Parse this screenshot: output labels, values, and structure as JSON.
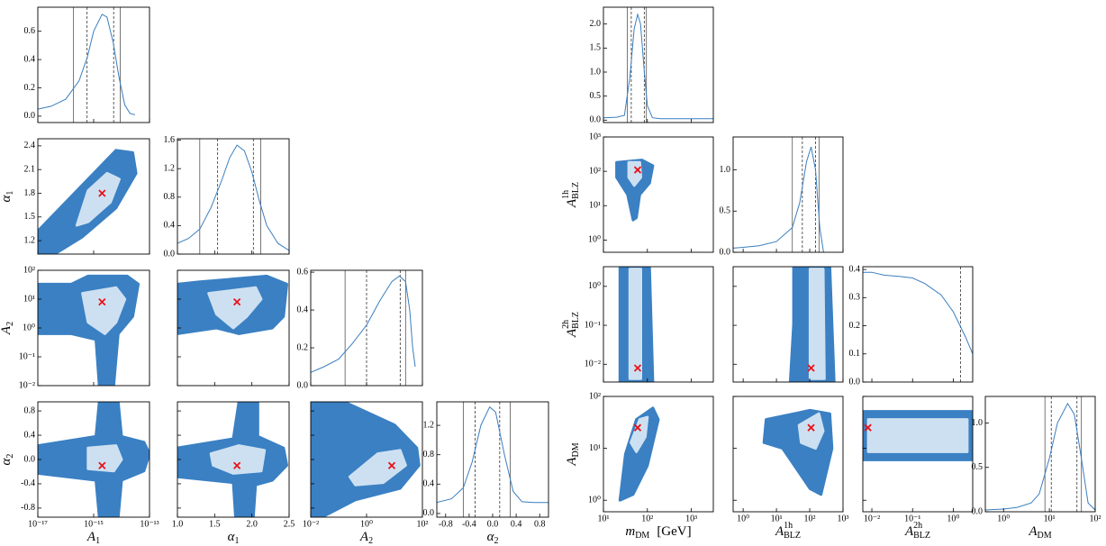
{
  "chart_data": [
    {
      "type": "corner",
      "outer_color": "#3a80c3",
      "inner_color": "#cde0f1",
      "marker_color": "#e8131b",
      "curve_color": "#3a7ebf",
      "params": [
        {
          "label": {
            "text": "A",
            "sub": "1"
          },
          "log": true,
          "xlim": [
            1e-17,
            1e-13
          ],
          "xticks": [
            {
              "value": 1e-17,
              "label": "10⁻¹⁷"
            },
            {
              "value": 1e-15,
              "label": "10⁻¹⁵"
            },
            {
              "value": 1e-13,
              "label": "10⁻¹³"
            }
          ],
          "best": 2e-15,
          "diag": {
            "x": [
              1e-17,
              3e-17,
              1e-16,
              3e-16,
              6e-16,
              1e-15,
              2e-15,
              3e-15,
              5e-15,
              8e-15,
              1.3e-14,
              2e-14,
              3e-14
            ],
            "y": [
              0.05,
              0.07,
              0.12,
              0.25,
              0.42,
              0.6,
              0.72,
              0.7,
              0.52,
              0.28,
              0.08,
              0.02,
              0.01
            ],
            "ylim": [
              -0.045,
              0.77
            ],
            "yticks": [
              {
                "value": 0,
                "label": "0.0"
              },
              0.2,
              0.4,
              0.6
            ],
            "solid": [
              1.9e-16,
              9e-15
            ],
            "dashed": [
              5.8e-16,
              5.2e-15
            ]
          }
        },
        {
          "label": {
            "text": "α",
            "sub": "1"
          },
          "log": false,
          "xlim": [
            1.0,
            2.5
          ],
          "xticks": [
            {
              "value": 1,
              "label": "1.0"
            },
            1.5,
            {
              "value": 2,
              "label": "2.0"
            },
            2.5
          ],
          "ylim": [
            1.03,
            2.49
          ],
          "yticks": [
            1.2,
            1.5,
            1.8,
            2.1,
            2.4
          ],
          "best": 1.8,
          "diag": {
            "x": [
              1.0,
              1.15,
              1.3,
              1.45,
              1.6,
              1.7,
              1.8,
              1.9,
              2.0,
              2.1,
              2.2,
              2.35,
              2.5
            ],
            "y": [
              0.15,
              0.22,
              0.35,
              0.65,
              1.05,
              1.35,
              1.53,
              1.45,
              1.15,
              0.75,
              0.4,
              0.15,
              0.05
            ],
            "ylim": [
              0,
              1.62
            ],
            "yticks": [
              {
                "value": 0,
                "label": "0.0"
              },
              0.4,
              0.8,
              1.2,
              1.6
            ],
            "solid": [
              1.3,
              2.12
            ],
            "dashed": [
              1.54,
              2.02
            ]
          }
        },
        {
          "label": {
            "text": "A",
            "sub": "2"
          },
          "log": true,
          "xlim": [
            0.01,
            100
          ],
          "xticks": [
            {
              "value": 0.01,
              "label": "10⁻²"
            },
            {
              "value": 1,
              "label": "10⁰"
            },
            {
              "value": 100,
              "label": "10²"
            }
          ],
          "ylim": [
            0.01,
            100
          ],
          "yticks": [
            {
              "value": 0.01,
              "label": "10⁻²"
            },
            {
              "value": 0.1,
              "label": "10⁻¹"
            },
            {
              "value": 1,
              "label": "10⁰"
            },
            {
              "value": 10,
              "label": "10¹"
            },
            {
              "value": 100,
              "label": "10²"
            }
          ],
          "best": 8,
          "diag": {
            "x": [
              0.01,
              0.03,
              0.1,
              0.3,
              1,
              3,
              8,
              15,
              25,
              35,
              45,
              55
            ],
            "y": [
              0.07,
              0.1,
              0.14,
              0.22,
              0.32,
              0.45,
              0.55,
              0.58,
              0.55,
              0.4,
              0.2,
              0.1
            ],
            "ylim": [
              0,
              0.61
            ],
            "yticks": [
              {
                "value": 0,
                "label": "0.0"
              },
              0.2,
              0.4,
              0.6
            ],
            "solid": [
              0.17,
              25
            ],
            "dashed": [
              1,
              16
            ]
          }
        },
        {
          "label": {
            "text": "α",
            "sub": "2"
          },
          "log": false,
          "xlim": [
            -0.95,
            0.95
          ],
          "xticks": [
            -0.8,
            -0.4,
            {
              "value": 0,
              "label": "0.0"
            },
            0.4,
            0.8
          ],
          "ylim": [
            -0.95,
            0.95
          ],
          "yticks": [
            -0.8,
            -0.4,
            {
              "value": 0,
              "label": "0.0"
            },
            0.4,
            0.8
          ],
          "best": -0.1,
          "diag": {
            "x": [
              -0.95,
              -0.7,
              -0.5,
              -0.35,
              -0.2,
              -0.05,
              0.05,
              0.2,
              0.35,
              0.5,
              0.7,
              0.95
            ],
            "y": [
              0.15,
              0.2,
              0.35,
              0.7,
              1.2,
              1.45,
              1.38,
              0.8,
              0.3,
              0.16,
              0.15,
              0.15
            ],
            "ylim": [
              -0.05,
              1.52
            ],
            "yticks": [
              {
                "value": 0,
                "label": "0.0"
              },
              0.4,
              0.8,
              1.2
            ],
            "solid": [
              -0.5,
              0.3
            ],
            "dashed": [
              -0.3,
              0.12
            ]
          }
        }
      ]
    },
    {
      "type": "corner",
      "outer_color": "#3a80c3",
      "inner_color": "#cde0f1",
      "marker_color": "#e8131b",
      "curve_color": "#3a7ebf",
      "params": [
        {
          "label": {
            "text": "m",
            "sub": "DM",
            "suffix": "[GeV]"
          },
          "log": true,
          "xlim": [
            10,
            3162
          ],
          "xticks": [
            {
              "value": 10,
              "label": "10¹"
            },
            {
              "value": 100,
              "label": "10²"
            },
            {
              "value": 1000,
              "label": "10³"
            }
          ],
          "best": 60,
          "diag": {
            "x": [
              10,
              20,
              30,
              40,
              50,
              60,
              70,
              85,
              100,
              130,
              200,
              500,
              3162
            ],
            "y": [
              0.05,
              0.06,
              0.1,
              0.9,
              1.9,
              2.2,
              2.0,
              1.0,
              0.3,
              0.05,
              0.03,
              0.03,
              0.03
            ],
            "ylim": [
              -0.05,
              2.35
            ],
            "yticks": [
              {
                "value": 0,
                "label": "0.0"
              },
              0.5,
              {
                "value": 1,
                "label": "1.0"
              },
              1.5,
              {
                "value": 2,
                "label": "2.0"
              }
            ],
            "solid": [
              35,
              95
            ],
            "dashed": [
              43,
              85
            ]
          }
        },
        {
          "label": {
            "text": "A",
            "sub": "BLZ",
            "sup": "1h"
          },
          "log": true,
          "xlim": [
            0.5,
            1000
          ],
          "xticks": [
            {
              "value": 1,
              "label": "10⁰"
            },
            {
              "value": 10,
              "label": "10¹"
            },
            {
              "value": 100,
              "label": "10²"
            },
            {
              "value": 1000,
              "label": "10³"
            }
          ],
          "ylim": [
            0.44,
            1000
          ],
          "yticks": [
            {
              "value": 1,
              "label": "10⁰"
            },
            {
              "value": 10,
              "label": "10¹"
            },
            {
              "value": 100,
              "label": "10²"
            },
            {
              "value": 1000,
              "label": "10³"
            }
          ],
          "best": 110,
          "diag": {
            "x": [
              0.5,
              1,
              3,
              10,
              30,
              50,
              80,
              110,
              150,
              200,
              260
            ],
            "y": [
              0.05,
              0.06,
              0.08,
              0.13,
              0.3,
              0.6,
              1.1,
              1.28,
              1.0,
              0.3,
              0
            ],
            "ylim": [
              0,
              1.4
            ],
            "yticks": [
              {
                "value": 0,
                "label": "0.0"
              },
              0.5,
              {
                "value": 1,
                "label": "1.0"
              }
            ],
            "solid": [
              30,
              190
            ],
            "dashed": [
              60,
              150
            ]
          }
        },
        {
          "label": {
            "text": "A",
            "sub": "BLZ",
            "sup": "2h"
          },
          "log": true,
          "xlim": [
            0.006,
            3
          ],
          "xticks": [
            {
              "value": 0.01,
              "label": "10⁻²"
            },
            {
              "value": 0.1,
              "label": "10⁻¹"
            },
            {
              "value": 1,
              "label": "10⁰"
            }
          ],
          "ylim": [
            0.0035,
            3.2
          ],
          "yticks": [
            {
              "value": 0.01,
              "label": "10⁻²"
            },
            {
              "value": 0.1,
              "label": "10⁻¹"
            },
            {
              "value": 1,
              "label": "10⁰"
            }
          ],
          "best": 0.008,
          "diag": {
            "x": [
              0.006,
              0.01,
              0.02,
              0.05,
              0.1,
              0.2,
              0.5,
              1,
              2,
              3
            ],
            "y": [
              0.39,
              0.39,
              0.38,
              0.375,
              0.37,
              0.35,
              0.31,
              0.25,
              0.16,
              0.1
            ],
            "ylim": [
              0,
              0.41
            ],
            "yticks": [
              {
                "value": 0,
                "label": "0.0"
              },
              0.1,
              0.2,
              0.3,
              0.4
            ],
            "solid": [],
            "dashed": [
              1.5
            ]
          }
        },
        {
          "label": {
            "text": "A",
            "sub": "DM"
          },
          "log": true,
          "xlim": [
            0.4,
            100
          ],
          "xticks": [
            {
              "value": 1,
              "label": "10⁰"
            },
            {
              "value": 10,
              "label": "10¹"
            },
            {
              "value": 100,
              "label": "10²"
            }
          ],
          "ylim": [
            0.6,
            100
          ],
          "yticks": [
            {
              "value": 1,
              "label": "10⁰"
            },
            {
              "value": 10,
              "label": "10¹"
            },
            {
              "value": 100,
              "label": "10²"
            }
          ],
          "best": 25,
          "diag": {
            "x": [
              0.4,
              1,
              2,
              4,
              6,
              10,
              15,
              25,
              35,
              50,
              70,
              100
            ],
            "y": [
              0.02,
              0.03,
              0.05,
              0.1,
              0.2,
              0.6,
              1.0,
              1.22,
              1.1,
              0.6,
              0.1,
              0.02
            ],
            "ylim": [
              0,
              1.3
            ],
            "yticks": [
              {
                "value": 0,
                "label": "0.0"
              },
              0.5,
              {
                "value": 1,
                "label": "1.0"
              }
            ],
            "solid": [
              8,
              50
            ],
            "dashed": [
              11,
              40
            ]
          }
        }
      ]
    }
  ]
}
